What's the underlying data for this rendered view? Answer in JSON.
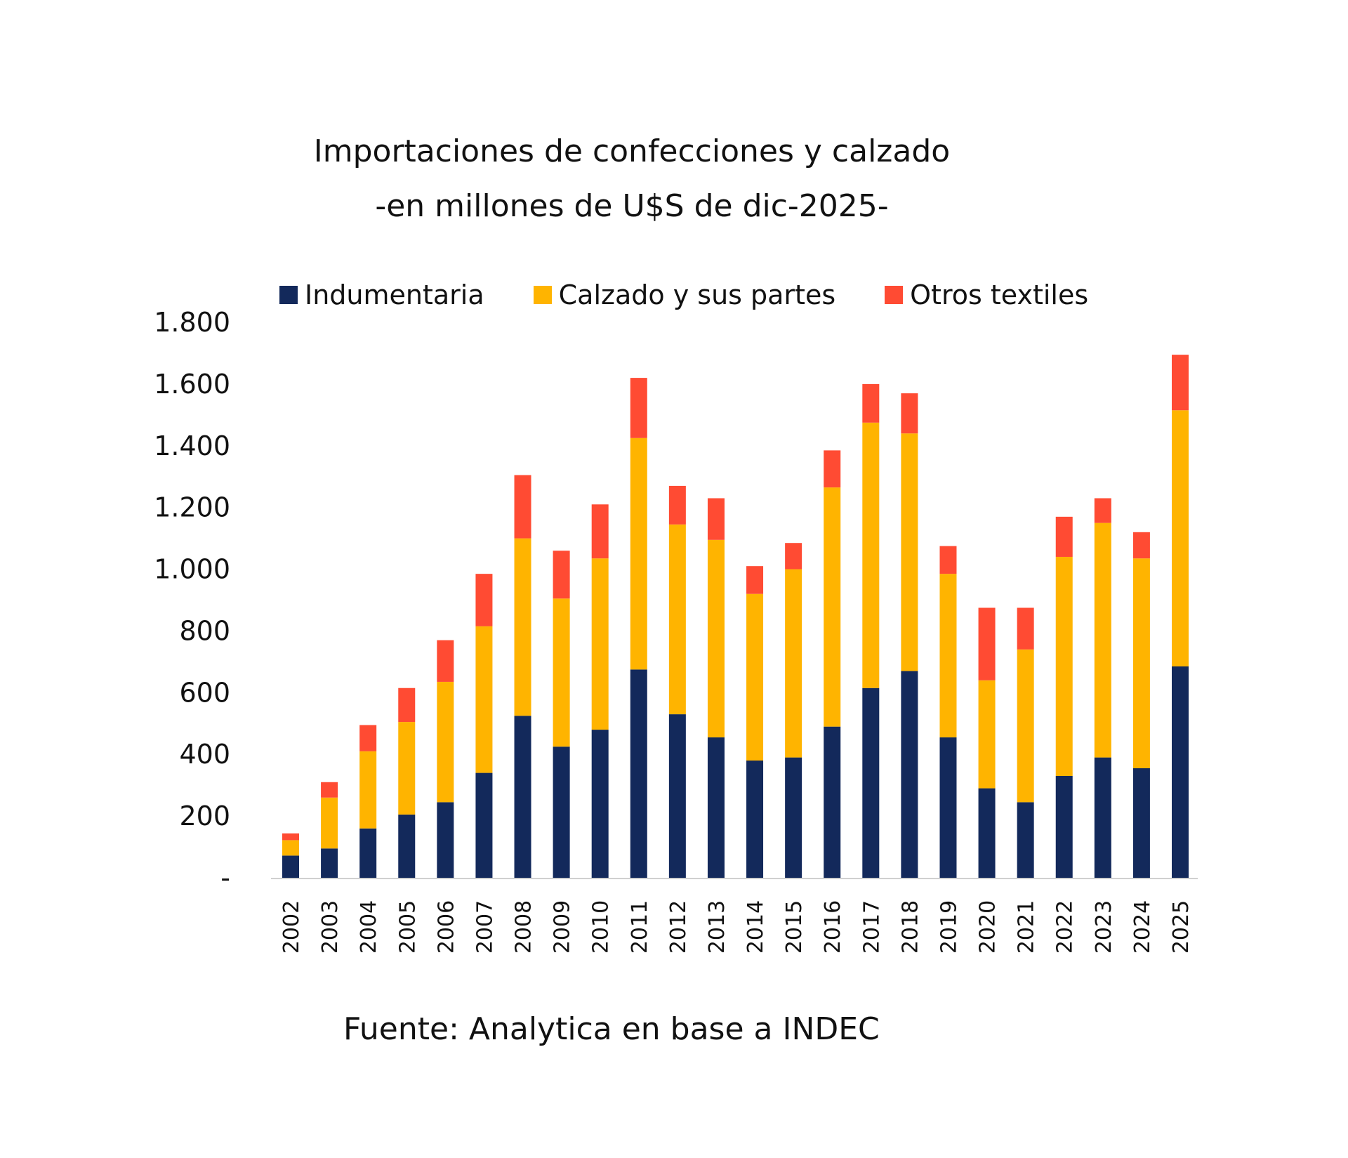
{
  "chart_data": {
    "type": "bar",
    "stacked": true,
    "title": "Importaciones de confecciones y calzado",
    "subtitle": "-en millones de U$S de dic-2025-",
    "source": "Fuente: Analytica en base a INDEC",
    "xlabel": "",
    "ylabel": "",
    "ylim": [
      0,
      1800
    ],
    "yticks": [
      0,
      200,
      400,
      600,
      800,
      1000,
      1200,
      1400,
      1600,
      1800
    ],
    "ytick_labels": [
      "-",
      "200",
      "400",
      "600",
      "800",
      "1.000",
      "1.200",
      "1.400",
      "1.600",
      "1.800"
    ],
    "grid": false,
    "legend_position": "top",
    "categories": [
      "2002",
      "2003",
      "2004",
      "2005",
      "2006",
      "2007",
      "2008",
      "2009",
      "2010",
      "2011",
      "2012",
      "2013",
      "2014",
      "2015",
      "2016",
      "2017",
      "2018",
      "2019",
      "2020",
      "2021",
      "2022",
      "2023",
      "2024",
      "2025"
    ],
    "series": [
      {
        "name": "Indumentaria",
        "color": "#13295b",
        "values": [
          72,
          95,
          160,
          205,
          245,
          340,
          525,
          425,
          480,
          675,
          530,
          455,
          380,
          390,
          490,
          615,
          670,
          455,
          290,
          245,
          330,
          390,
          355,
          685
        ]
      },
      {
        "name": "Calzado y sus partes",
        "color": "#ffb400",
        "values": [
          50,
          165,
          250,
          300,
          390,
          475,
          575,
          480,
          555,
          750,
          615,
          640,
          540,
          610,
          775,
          860,
          770,
          530,
          350,
          495,
          710,
          760,
          680,
          830
        ]
      },
      {
        "name": "Otros textiles",
        "color": "#ff4b33",
        "values": [
          22,
          50,
          85,
          110,
          135,
          170,
          205,
          155,
          175,
          195,
          125,
          135,
          90,
          85,
          120,
          125,
          130,
          90,
          235,
          135,
          130,
          80,
          85,
          180
        ]
      }
    ]
  }
}
